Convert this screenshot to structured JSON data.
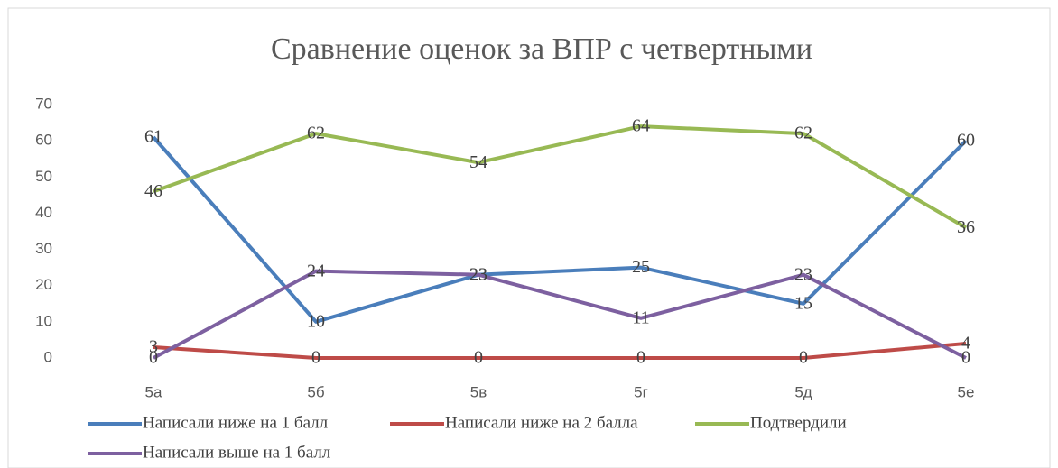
{
  "chart_data": {
    "type": "line",
    "title": "Сравнение оценок за ВПР с четвертными",
    "categories": [
      "5а",
      "5б",
      "5в",
      "5г",
      "5д",
      "5е"
    ],
    "series": [
      {
        "name": "Написали ниже на 1 балл",
        "color": "#4a7ebb",
        "values": [
          61,
          10,
          23,
          25,
          15,
          60
        ]
      },
      {
        "name": "Написали ниже на 2 балла",
        "color": "#be4b48",
        "values": [
          3,
          0,
          0,
          0,
          0,
          4
        ]
      },
      {
        "name": "Подтвердили",
        "color": "#98b954",
        "values": [
          46,
          62,
          54,
          64,
          62,
          36
        ]
      },
      {
        "name": "Написали выше на 1 балл",
        "color": "#7d60a0",
        "values": [
          0,
          24,
          23,
          11,
          23,
          0
        ]
      }
    ],
    "ylim": [
      0,
      70
    ],
    "yticks": [
      0,
      10,
      20,
      30,
      40,
      50,
      60,
      70
    ],
    "grid": false
  }
}
